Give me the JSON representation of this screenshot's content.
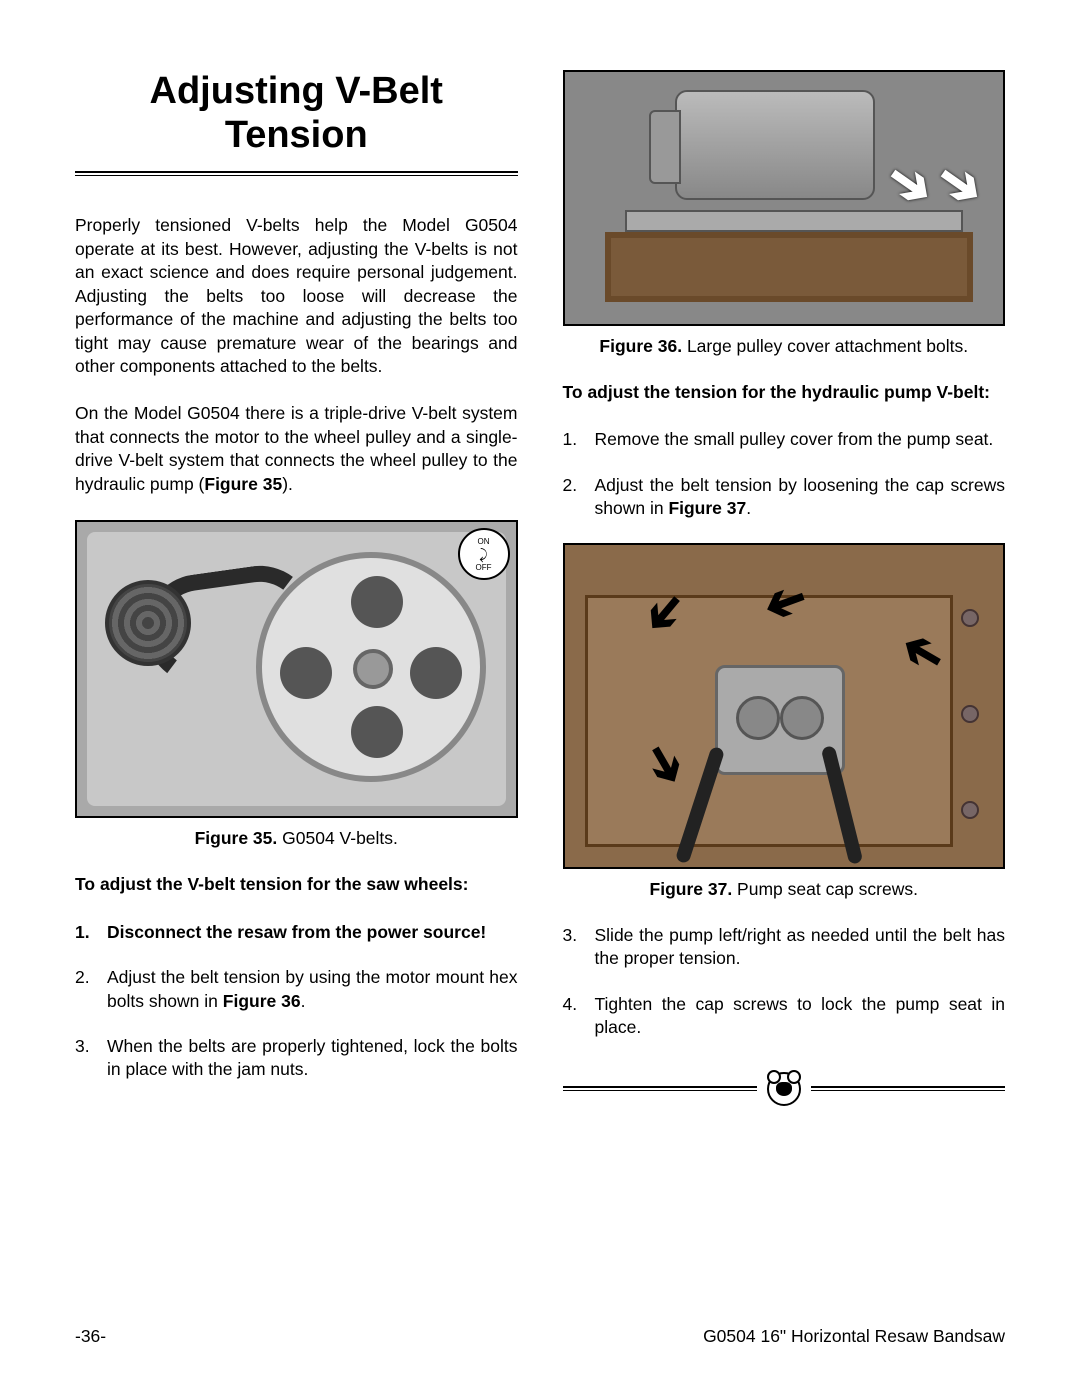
{
  "title": "Adjusting V-Belt Tension",
  "para1": "Properly tensioned V-belts help the Model G0504 operate at its best. However, adjusting the V-belts is not an exact science and does require personal judgement. Adjusting the belts too loose will decrease the performance of the machine and adjusting the belts too tight may cause premature wear of the bearings and other components attached to the belts.",
  "para2_a": "On the Model G0504 there is a triple-drive V-belt system that connects the motor to the wheel pulley and a single-drive V-belt system that connects the wheel pulley to the hydraulic pump (",
  "para2_b": "Figure 35",
  "para2_c": ").",
  "fig35": {
    "label": "Figure 35.",
    "caption": " G0504 V-belts.",
    "badge_on": "ON",
    "badge_off": "OFF"
  },
  "heading1": "To adjust the V-belt tension for the saw wheels:",
  "steps1": {
    "s1": "Disconnect the resaw from the power source!",
    "s2_a": "Adjust the belt tension by using the motor mount hex bolts shown in ",
    "s2_b": "Figure 36",
    "s2_c": ".",
    "s3": "When the belts are properly tightened, lock the bolts in place with the jam nuts."
  },
  "fig36": {
    "label": "Figure 36.",
    "caption": " Large pulley cover attachment bolts."
  },
  "heading2": "To adjust the tension for the hydraulic pump V-belt:",
  "steps2": {
    "s1": "Remove the small pulley cover from the pump seat.",
    "s2_a": "Adjust the belt tension by loosening the cap screws shown in ",
    "s2_b": "Figure 37",
    "s2_c": ".",
    "s3": "Slide the pump left/right as needed until the belt has the proper tension.",
    "s4": "Tighten the cap screws to lock the pump seat in place."
  },
  "fig37": {
    "label": "Figure 37.",
    "caption": " Pump seat cap screws."
  },
  "footer": {
    "page": "-36-",
    "doc": "G0504 16\" Horizontal Resaw Bandsaw"
  }
}
